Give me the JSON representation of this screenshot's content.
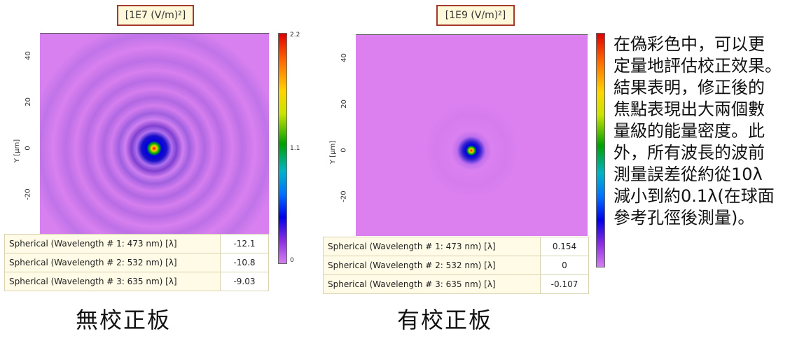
{
  "left_panel": {
    "unit_label": "[1E7 (V/m)²]",
    "colorbar_ticks": [
      "2.2",
      "1.1",
      "0"
    ],
    "y_axis_label": "Y [μm]",
    "y_ticks": [
      "40",
      "20",
      "0",
      "-20"
    ],
    "rows": [
      {
        "label": "Spherical (Wavelength # 1: 473 nm) [λ]",
        "value": "-12.1"
      },
      {
        "label": "Spherical (Wavelength # 2: 532 nm) [λ]",
        "value": "-10.8"
      },
      {
        "label": "Spherical (Wavelength # 3: 635 nm) [λ]",
        "value": "-9.03"
      }
    ],
    "caption": "無校正板"
  },
  "right_panel": {
    "unit_label": "[1E9 (V/m)²]",
    "y_axis_label": "Y [μm]",
    "y_ticks": [
      "40",
      "20",
      "0",
      "-20"
    ],
    "rows": [
      {
        "label": "Spherical (Wavelength # 1: 473 nm) [λ]",
        "value": "0.154"
      },
      {
        "label": "Spherical (Wavelength # 2: 532 nm) [λ]",
        "value": "0"
      },
      {
        "label": "Spherical (Wavelength # 3: 635 nm) [λ]",
        "value": "-0.107"
      }
    ],
    "caption": "有校正板"
  },
  "description": "在偽彩色中，可以更\n定量地評估校正效果。\n結果表明，修正後的\n焦點表現出大兩個數\n量級的能量密度。此\n外，所有波長的波前\n測量誤差從約從10λ\n減小到約0.1λ(在球面\n參考孔徑後測量)。",
  "colors": {
    "background_magenta": "#d77bea",
    "ring_dark": "#b060e0",
    "unit_box_border": "#a43a2c"
  }
}
